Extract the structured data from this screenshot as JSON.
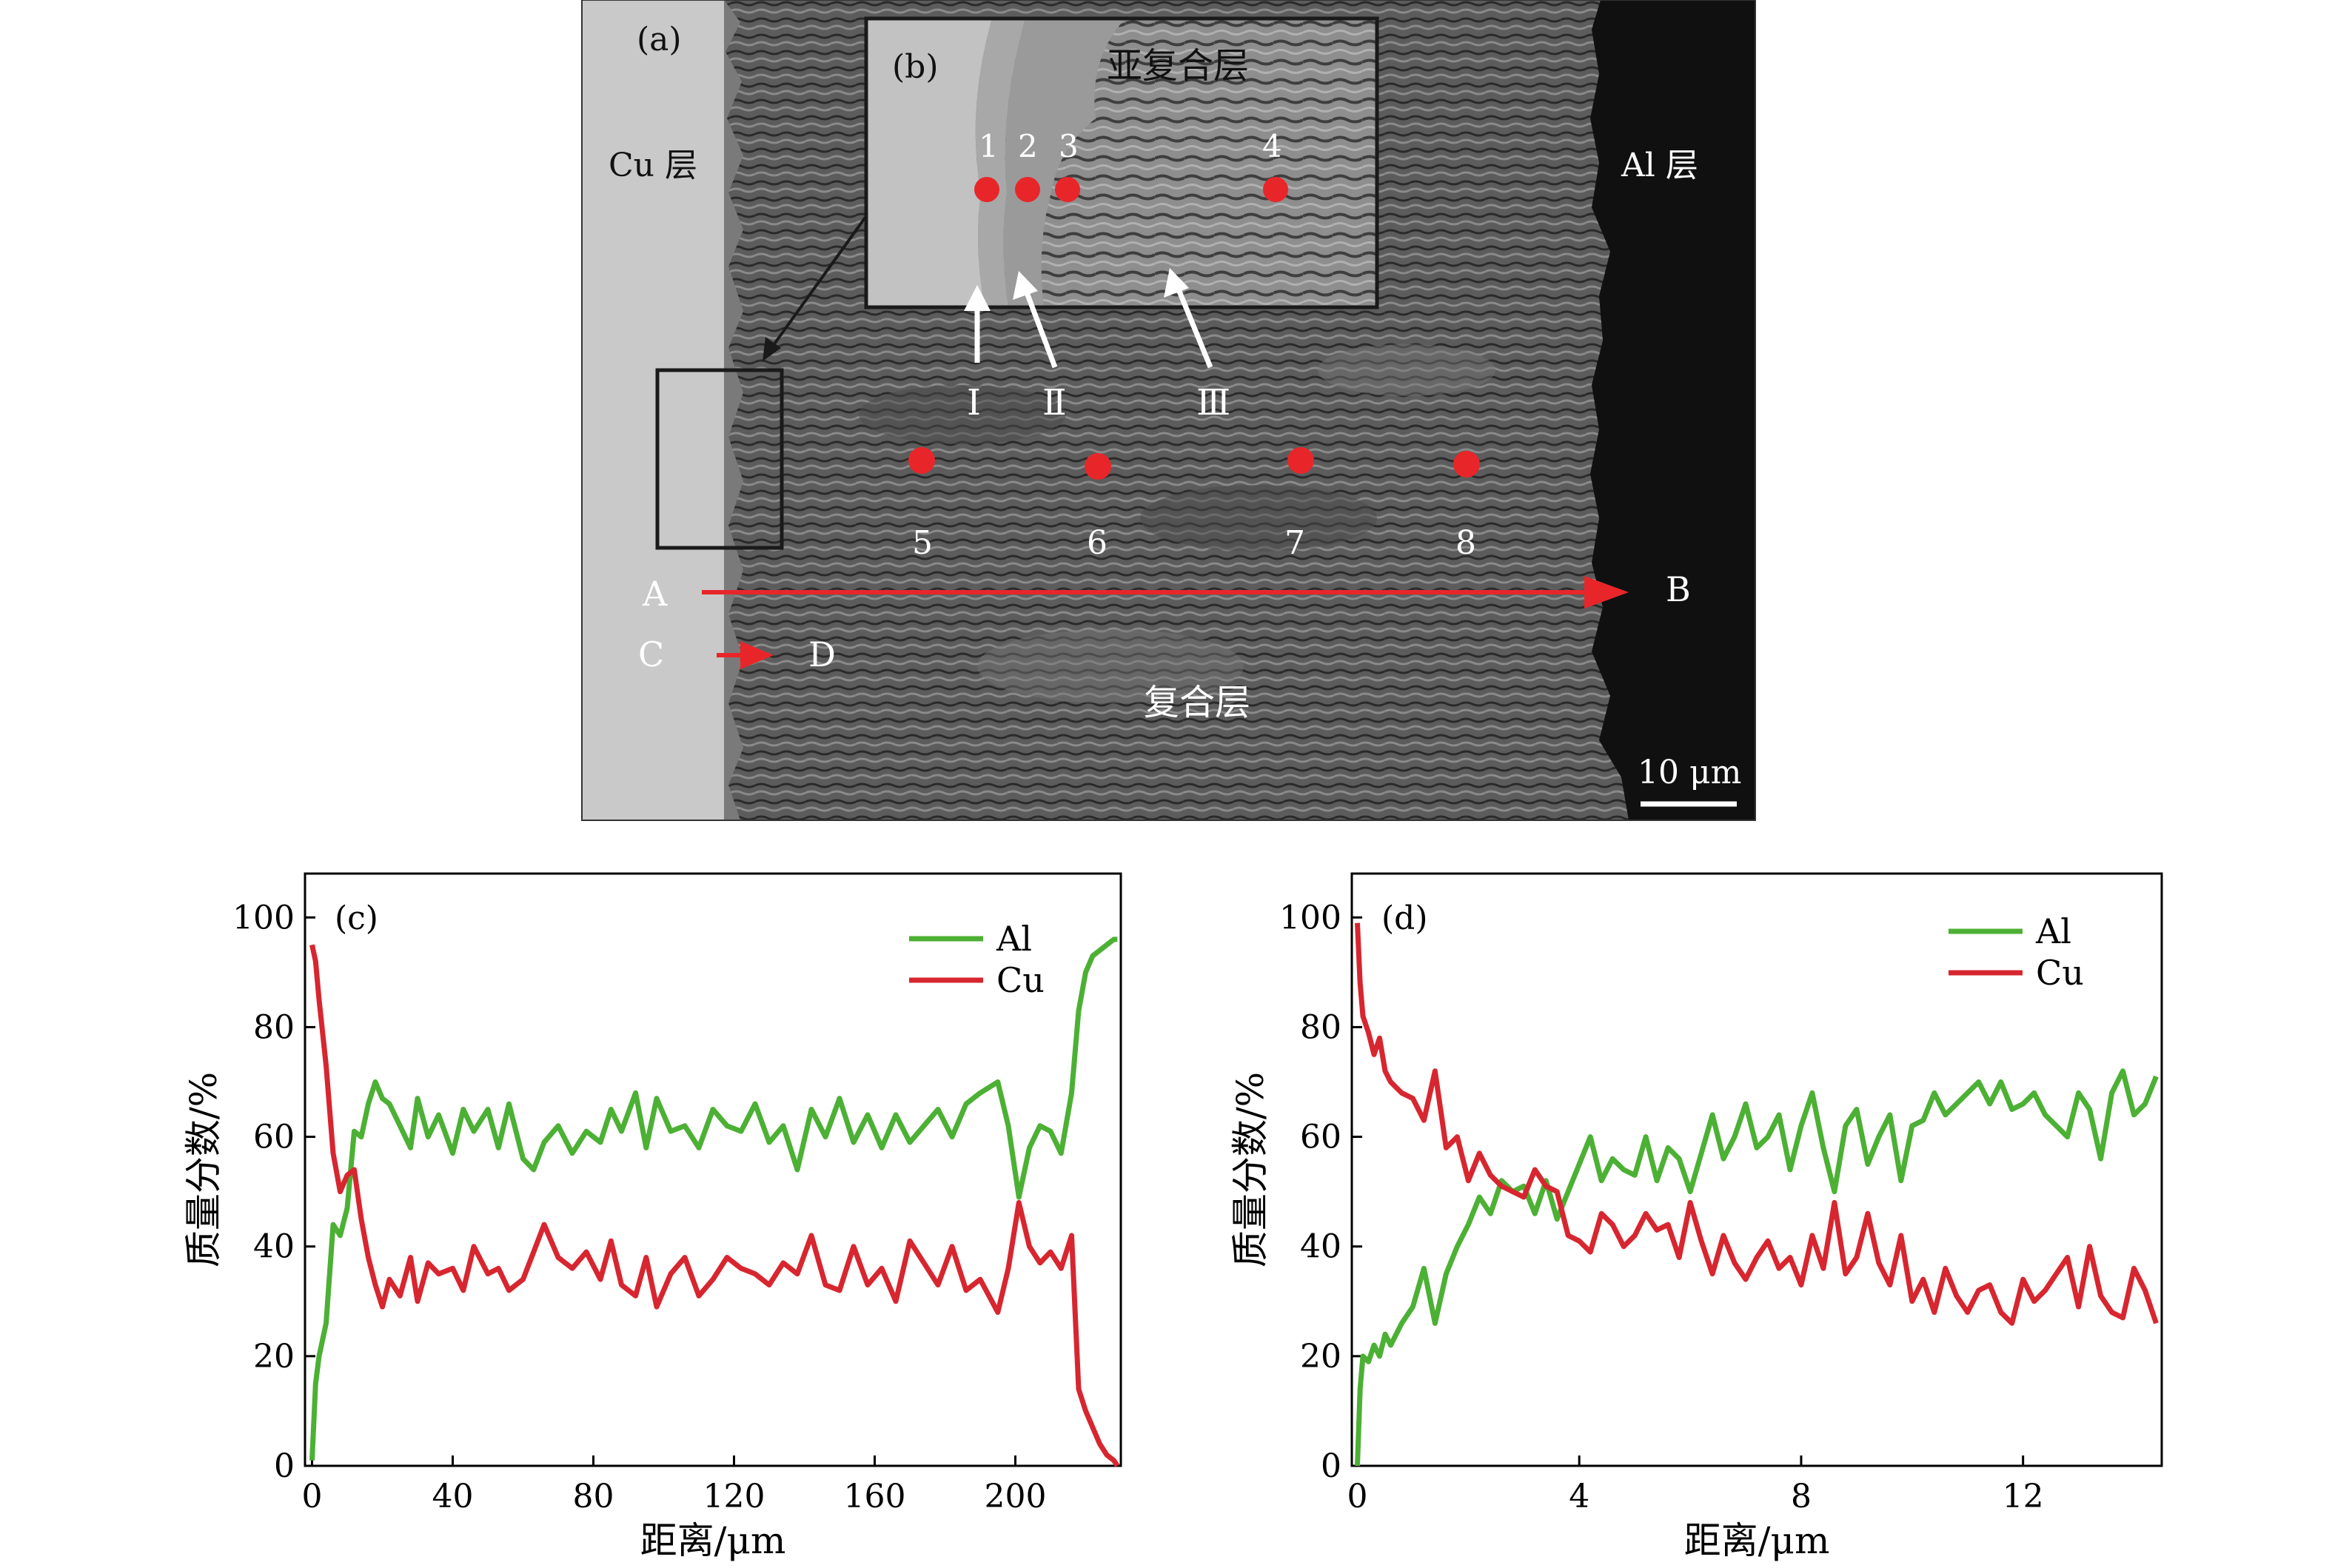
{
  "micrograph": {
    "panel_label": "(a)",
    "inset_label": "(b)",
    "cu_layer": "Cu 层",
    "al_layer": "Al 层",
    "sub_composite_layer": "亚复合层",
    "composite_layer": "复合层",
    "scale_bar": "10 μm",
    "inset_points": [
      "1",
      "2",
      "3",
      "4"
    ],
    "main_points": [
      "5",
      "6",
      "7",
      "8"
    ],
    "phase_arrows": [
      "Ⅰ",
      "Ⅱ",
      "Ⅲ"
    ],
    "line_scans": [
      {
        "start": "A",
        "end": "B"
      },
      {
        "start": "C",
        "end": "D"
      }
    ],
    "colors": {
      "marker": "#e8262a",
      "cu_region": "#c9c9c9",
      "al_region": "#111111",
      "matrix": "#6a6a6a"
    }
  },
  "chart_data": [
    {
      "type": "line",
      "panel_label": "(c)",
      "xlabel": "距离/μm",
      "ylabel": "质量分数/%",
      "xlim": [
        -2,
        230
      ],
      "ylim": [
        0,
        108
      ],
      "xticks": [
        "0",
        "40",
        "80",
        "120",
        "160",
        "200"
      ],
      "yticks": [
        "0",
        "20",
        "40",
        "60",
        "80",
        "100"
      ],
      "legend_position": "top-right",
      "x": [
        0,
        1,
        2,
        4,
        6,
        8,
        10,
        12,
        14,
        16,
        18,
        20,
        22,
        25,
        28,
        30,
        33,
        36,
        40,
        43,
        46,
        50,
        53,
        56,
        60,
        63,
        66,
        70,
        74,
        78,
        82,
        85,
        88,
        92,
        95,
        98,
        102,
        106,
        110,
        114,
        118,
        122,
        126,
        130,
        134,
        138,
        142,
        146,
        150,
        154,
        158,
        162,
        166,
        170,
        174,
        178,
        182,
        186,
        190,
        195,
        198,
        201,
        204,
        207,
        210,
        213,
        216,
        218,
        220,
        222,
        224,
        226,
        228,
        229
      ],
      "series": [
        {
          "name": "Al",
          "color": "#4cb034",
          "values": [
            1,
            15,
            20,
            26,
            44,
            42,
            47,
            61,
            60,
            66,
            70,
            67,
            66,
            62,
            58,
            67,
            60,
            64,
            57,
            65,
            61,
            65,
            58,
            66,
            56,
            54,
            59,
            62,
            57,
            61,
            59,
            65,
            61,
            68,
            58,
            67,
            61,
            62,
            58,
            65,
            62,
            61,
            66,
            59,
            62,
            54,
            65,
            60,
            67,
            59,
            64,
            58,
            64,
            59,
            62,
            65,
            60,
            66,
            68,
            70,
            62,
            49,
            58,
            62,
            61,
            57,
            68,
            83,
            90,
            93,
            94,
            95,
            96,
            96
          ]
        },
        {
          "name": "Cu",
          "color": "#d7262f",
          "values": [
            95,
            92,
            85,
            73,
            57,
            50,
            53,
            54,
            45,
            38,
            33,
            29,
            34,
            31,
            38,
            30,
            37,
            35,
            36,
            32,
            40,
            35,
            36,
            32,
            34,
            39,
            44,
            38,
            36,
            39,
            34,
            41,
            33,
            31,
            38,
            29,
            35,
            38,
            31,
            34,
            38,
            36,
            35,
            33,
            37,
            35,
            42,
            33,
            32,
            40,
            33,
            36,
            30,
            41,
            37,
            33,
            40,
            32,
            34,
            28,
            36,
            48,
            40,
            37,
            39,
            36,
            42,
            14,
            10,
            7,
            4,
            2,
            1,
            0
          ]
        }
      ]
    },
    {
      "type": "line",
      "panel_label": "(d)",
      "xlabel": "距离/μm",
      "ylabel": "质量分数/%",
      "xlim": [
        -0.1,
        14.5
      ],
      "ylim": [
        0,
        108
      ],
      "xticks": [
        "0",
        "4",
        "8",
        "12"
      ],
      "yticks": [
        "0",
        "20",
        "40",
        "60",
        "80",
        "100"
      ],
      "legend_position": "top-right",
      "x": [
        0,
        0.05,
        0.1,
        0.2,
        0.3,
        0.4,
        0.5,
        0.6,
        0.8,
        1.0,
        1.2,
        1.4,
        1.6,
        1.8,
        2.0,
        2.2,
        2.4,
        2.6,
        2.8,
        3.0,
        3.2,
        3.4,
        3.6,
        3.8,
        4.0,
        4.2,
        4.4,
        4.6,
        4.8,
        5.0,
        5.2,
        5.4,
        5.6,
        5.8,
        6.0,
        6.2,
        6.4,
        6.6,
        6.8,
        7.0,
        7.2,
        7.4,
        7.6,
        7.8,
        8.0,
        8.2,
        8.4,
        8.6,
        8.8,
        9.0,
        9.2,
        9.4,
        9.6,
        9.8,
        10.0,
        10.2,
        10.4,
        10.6,
        10.8,
        11.0,
        11.2,
        11.4,
        11.6,
        11.8,
        12.0,
        12.2,
        12.4,
        12.6,
        12.8,
        13.0,
        13.2,
        13.4,
        13.6,
        13.8,
        14.0,
        14.2,
        14.4
      ],
      "series": [
        {
          "name": "Al",
          "color": "#4cb034",
          "values": [
            0,
            14,
            20,
            19,
            22,
            20,
            24,
            22,
            26,
            29,
            36,
            26,
            35,
            40,
            44,
            49,
            46,
            52,
            50,
            51,
            46,
            52,
            45,
            50,
            55,
            60,
            52,
            56,
            54,
            53,
            60,
            52,
            58,
            56,
            50,
            57,
            64,
            56,
            60,
            66,
            58,
            60,
            64,
            54,
            62,
            68,
            58,
            50,
            62,
            65,
            55,
            60,
            64,
            52,
            62,
            63,
            68,
            64,
            66,
            68,
            70,
            66,
            70,
            65,
            66,
            68,
            64,
            62,
            60,
            68,
            65,
            56,
            68,
            72,
            64,
            66,
            71
          ]
        },
        {
          "name": "Cu",
          "color": "#d7262f",
          "values": [
            99,
            88,
            82,
            79,
            75,
            78,
            72,
            70,
            68,
            67,
            63,
            72,
            58,
            60,
            52,
            57,
            53,
            51,
            50,
            49,
            54,
            51,
            50,
            42,
            41,
            39,
            46,
            44,
            40,
            42,
            46,
            43,
            44,
            38,
            48,
            41,
            35,
            42,
            37,
            34,
            38,
            41,
            36,
            38,
            33,
            42,
            36,
            48,
            35,
            38,
            46,
            37,
            33,
            42,
            30,
            34,
            28,
            36,
            31,
            28,
            32,
            33,
            28,
            26,
            34,
            30,
            32,
            35,
            38,
            29,
            40,
            31,
            28,
            27,
            36,
            32,
            26
          ]
        }
      ]
    }
  ]
}
